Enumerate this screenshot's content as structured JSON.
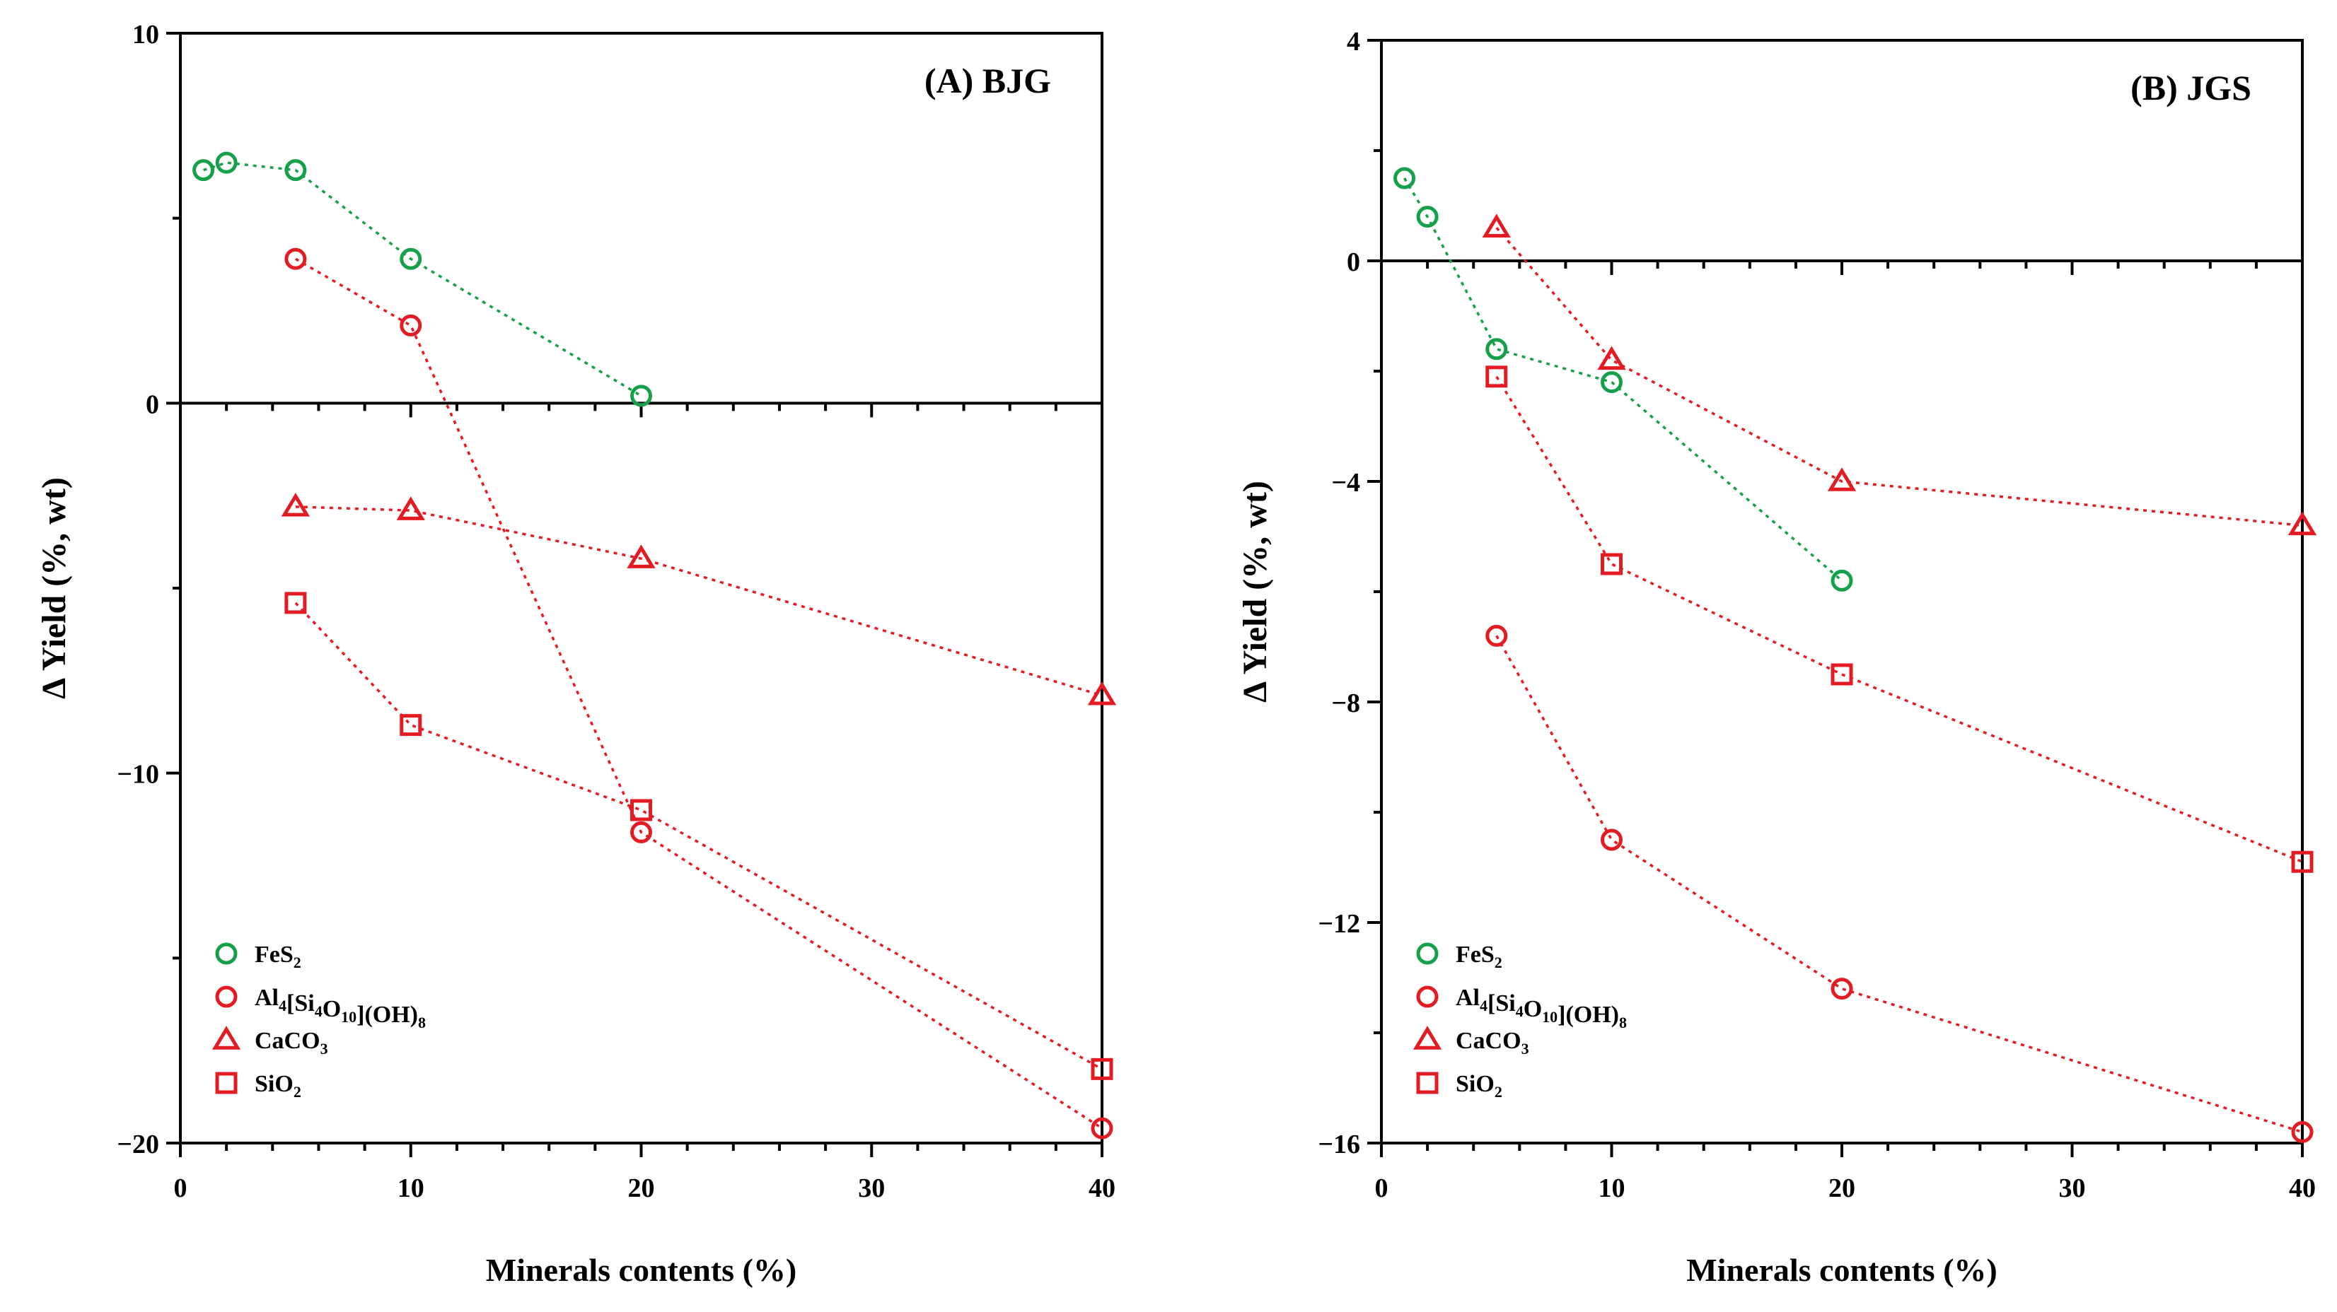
{
  "colors": {
    "green": "#16a049",
    "red": "#e31b23",
    "black": "#000000"
  },
  "chart_data": [
    {
      "type": "line",
      "panel_label": "(A) BJG",
      "xlabel": "Minerals contents (%)",
      "ylabel": "Δ Yield (%, wt)",
      "xlim": [
        0,
        40
      ],
      "ylim": [
        -20,
        10
      ],
      "xticks": [
        0,
        10,
        20,
        30,
        40
      ],
      "xtick_labels": [
        "0",
        "10",
        "20",
        "30",
        "40"
      ],
      "yticks": [
        10,
        0,
        -10,
        -20
      ],
      "ytick_labels": [
        "10",
        "0",
        "−10",
        "−20"
      ],
      "zero_line": true,
      "legend_position": "bottom-left",
      "series": [
        {
          "name": "FeS₂",
          "marker": "circle",
          "color": "#16a049",
          "x": [
            1,
            2,
            5,
            10,
            20
          ],
          "y": [
            6.3,
            6.5,
            6.3,
            3.9,
            0.2
          ]
        },
        {
          "name": "Al₄[Si₄O₁₀](OH)₈",
          "marker": "circle",
          "color": "#e31b23",
          "x": [
            5,
            10,
            20,
            40
          ],
          "y": [
            3.9,
            2.1,
            -11.6,
            -19.6
          ]
        },
        {
          "name": "CaCO₃",
          "marker": "triangle",
          "color": "#e31b23",
          "x": [
            5,
            10,
            20,
            40
          ],
          "y": [
            -2.8,
            -2.9,
            -4.2,
            -7.9
          ]
        },
        {
          "name": "SiO₂",
          "marker": "square",
          "color": "#e31b23",
          "x": [
            5,
            10,
            20,
            40
          ],
          "y": [
            -5.4,
            -8.7,
            -11.0,
            -18.0
          ]
        }
      ]
    },
    {
      "type": "line",
      "panel_label": "(B) JGS",
      "xlabel": "Minerals contents (%)",
      "ylabel": "Δ Yield (%, wt)",
      "xlim": [
        0,
        40
      ],
      "ylim": [
        -16,
        4
      ],
      "xticks": [
        0,
        10,
        20,
        30,
        40
      ],
      "xtick_labels": [
        "0",
        "10",
        "20",
        "30",
        "40"
      ],
      "yticks": [
        4,
        0,
        -4,
        -8,
        -12,
        -16
      ],
      "ytick_labels": [
        "4",
        "0",
        "−4",
        "−8",
        "−12",
        "−16"
      ],
      "zero_line": true,
      "legend_position": "bottom-left",
      "series": [
        {
          "name": "FeS₂",
          "marker": "circle",
          "color": "#16a049",
          "x": [
            1,
            2,
            5,
            10,
            20
          ],
          "y": [
            1.5,
            0.8,
            -1.6,
            -2.2,
            -5.8
          ]
        },
        {
          "name": "Al₄[Si₄O₁₀](OH)₈",
          "marker": "circle",
          "color": "#e31b23",
          "x": [
            5,
            10,
            20,
            40
          ],
          "y": [
            -6.8,
            -10.5,
            -13.2,
            -15.8
          ]
        },
        {
          "name": "CaCO₃",
          "marker": "triangle",
          "color": "#e31b23",
          "x": [
            5,
            10,
            20,
            40
          ],
          "y": [
            0.6,
            -1.8,
            -4.0,
            -4.8
          ]
        },
        {
          "name": "SiO₂",
          "marker": "square",
          "color": "#e31b23",
          "x": [
            5,
            10,
            20,
            40
          ],
          "y": [
            -2.1,
            -5.5,
            -7.5,
            -10.9
          ]
        }
      ]
    }
  ]
}
